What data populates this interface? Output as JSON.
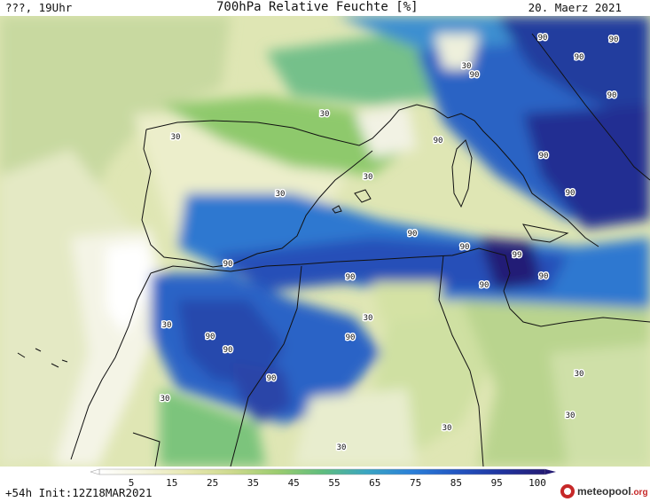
{
  "header": {
    "left": "???, 19Uhr",
    "center": "700hPa Relative Feuchte [%]",
    "right": "20. Maerz 2021"
  },
  "footer": {
    "run": "+54h Init:12Z18MAR2021",
    "logo_main": "meteopool",
    "logo_suffix": ".org"
  },
  "colorbar": {
    "ticks": [
      "5",
      "15",
      "25",
      "35",
      "45",
      "55",
      "65",
      "75",
      "85",
      "95",
      "100"
    ],
    "colors": [
      "#ffffff",
      "#f4f4dc",
      "#e6e7b0",
      "#ccd98c",
      "#9bcc6f",
      "#5fbd7d",
      "#3aa5c2",
      "#2a7fd8",
      "#2256c2",
      "#20349f",
      "#241b74"
    ]
  },
  "contour_labels": [
    {
      "id": "lbl-30-a",
      "text": "30"
    },
    {
      "id": "lbl-30-b",
      "text": "30"
    },
    {
      "id": "lbl-30-c",
      "text": "30"
    },
    {
      "id": "lbl-30-d",
      "text": "30"
    },
    {
      "id": "lbl-30-e",
      "text": "30"
    },
    {
      "id": "lbl-30-f",
      "text": "30"
    },
    {
      "id": "lbl-30-g",
      "text": "30"
    },
    {
      "id": "lbl-30-h",
      "text": "30"
    },
    {
      "id": "lbl-30-i",
      "text": "30"
    },
    {
      "id": "lbl-30-j",
      "text": "30"
    },
    {
      "id": "lbl-30-k",
      "text": "30"
    },
    {
      "id": "lbl-30-l",
      "text": "30"
    },
    {
      "id": "lbl-90-a",
      "text": "90"
    },
    {
      "id": "lbl-90-b",
      "text": "90"
    },
    {
      "id": "lbl-90-c",
      "text": "90"
    },
    {
      "id": "lbl-90-d",
      "text": "90"
    },
    {
      "id": "lbl-90-e",
      "text": "90"
    },
    {
      "id": "lbl-90-f",
      "text": "90"
    },
    {
      "id": "lbl-90-g",
      "text": "90"
    },
    {
      "id": "lbl-90-h",
      "text": "90"
    },
    {
      "id": "lbl-90-i",
      "text": "90"
    },
    {
      "id": "lbl-90-j",
      "text": "90"
    },
    {
      "id": "lbl-90-k",
      "text": "90"
    },
    {
      "id": "lbl-90-l",
      "text": "90"
    },
    {
      "id": "lbl-90-m",
      "text": "90"
    },
    {
      "id": "lbl-90-n",
      "text": "90"
    },
    {
      "id": "lbl-90-o",
      "text": "90"
    },
    {
      "id": "lbl-90-p",
      "text": "90"
    },
    {
      "id": "lbl-90-q",
      "text": "90"
    },
    {
      "id": "lbl-90-r",
      "text": "90"
    },
    {
      "id": "lbl-99",
      "text": "99"
    }
  ]
}
